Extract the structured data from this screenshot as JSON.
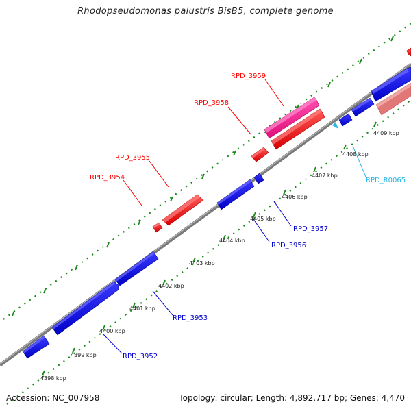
{
  "title": "Rhodopseudomonas palustris BisB5, complete genome",
  "footer": {
    "accession": "Accession: NC_007958",
    "stats": "Topology: circular; Length: 4,892,717 bp; Genes: 4,470"
  },
  "colors": {
    "forward_cds": "#ff0000",
    "reverse_cds": "#0000ff",
    "selected_cds": "#ff1493",
    "pseudo_cds": "#e88080",
    "rna": "#29b6e8",
    "backbone": "#808080",
    "ticks": "#1a8a1a"
  },
  "kbp_labels": [
    "4398 kbp",
    "4399 kbp",
    "4400 kbp",
    "4401 kbp",
    "4402 kbp",
    "4403 kbp",
    "4404 kbp",
    "4405 kbp",
    "4406 kbp",
    "4407 kbp",
    "4408 kbp",
    "4409 kbp"
  ],
  "gene_labels": {
    "RPD_3959": "RPD_3959",
    "RPD_3958": "RPD_3958",
    "RPD_3955": "RPD_3955",
    "RPD_3954": "RPD_3954",
    "RPD_3957": "RPD_3957",
    "RPD_3956": "RPD_3956",
    "RPD_3953": "RPD_3953",
    "RPD_3952": "RPD_3952",
    "RPD_R0065": "RPD_R0065"
  }
}
